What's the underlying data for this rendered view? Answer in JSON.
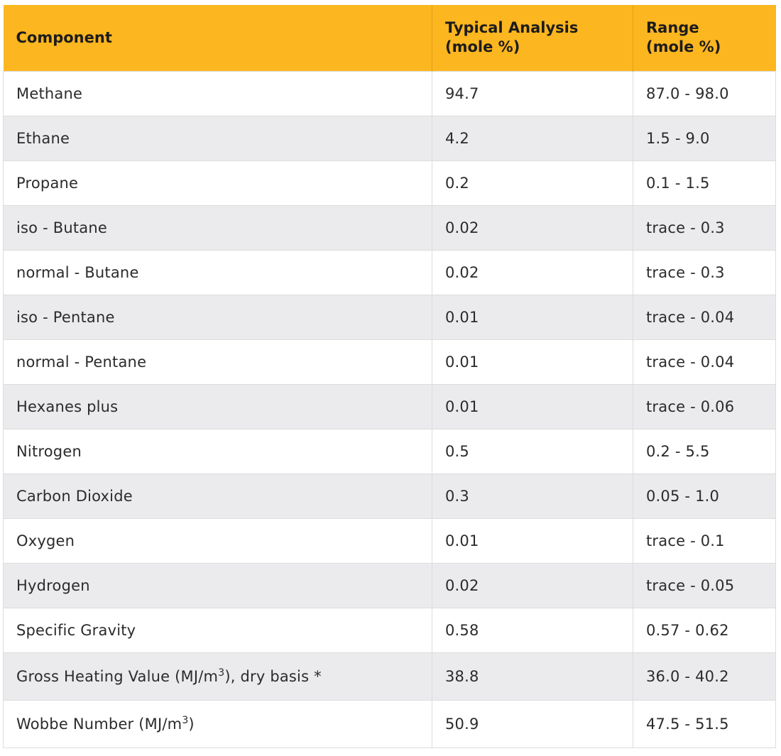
{
  "table": {
    "headers": {
      "component": "Component",
      "typical_line1": "Typical Analysis",
      "typical_line2": "(mole %)",
      "range_line1": "Range",
      "range_line2": "(mole %)"
    },
    "rows": [
      {
        "component": "Methane",
        "typical": "94.7",
        "range": "87.0 - 98.0"
      },
      {
        "component": "Ethane",
        "typical": "4.2",
        "range": "1.5 - 9.0"
      },
      {
        "component": "Propane",
        "typical": "0.2",
        "range": "0.1 - 1.5"
      },
      {
        "component": "iso - Butane",
        "typical": "0.02",
        "range": "trace - 0.3"
      },
      {
        "component": "normal - Butane",
        "typical": "0.02",
        "range": "trace - 0.3"
      },
      {
        "component": "iso - Pentane",
        "typical": "0.01",
        "range": "trace - 0.04"
      },
      {
        "component": "normal - Pentane",
        "typical": "0.01",
        "range": "trace - 0.04"
      },
      {
        "component": "Hexanes plus",
        "typical": "0.01",
        "range": "trace - 0.06"
      },
      {
        "component": "Nitrogen",
        "typical": "0.5",
        "range": "0.2 - 5.5"
      },
      {
        "component": "Carbon Dioxide",
        "typical": "0.3",
        "range": "0.05 - 1.0"
      },
      {
        "component": "Oxygen",
        "typical": "0.01",
        "range": "trace - 0.1"
      },
      {
        "component": "Hydrogen",
        "typical": "0.02",
        "range": "trace - 0.05"
      },
      {
        "component": "Specific Gravity",
        "typical": "0.58",
        "range": "0.57 - 0.62"
      }
    ],
    "gross_heating": {
      "label_pre": "Gross Heating Value (MJ/m",
      "sup": "3",
      "label_post": "), dry basis *",
      "typical": "38.8",
      "range": "36.0 - 40.2"
    },
    "wobbe": {
      "label_pre": "Wobbe Number (MJ/m",
      "sup": "3",
      "label_post": ")",
      "typical": "50.9",
      "range": "47.5 - 51.5"
    }
  },
  "colors": {
    "header_bg": "#fcb61f",
    "stripe_bg": "#ebebed",
    "border": "#dcdcdc"
  }
}
